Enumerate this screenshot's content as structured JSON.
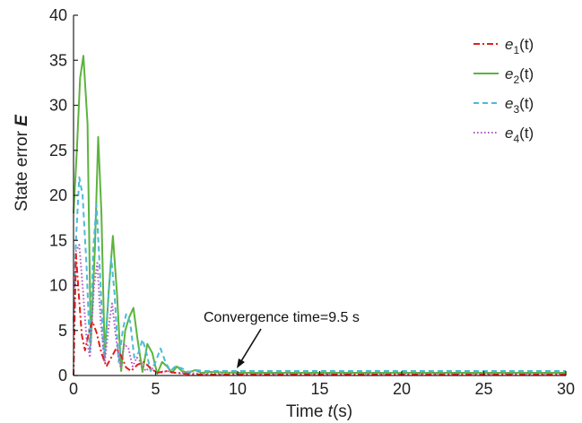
{
  "chart_data": {
    "type": "line",
    "xlabel": "Time t(s)",
    "xlabel_parts": {
      "prefix": "Time ",
      "var": "t",
      "suffix": "(s)"
    },
    "ylabel": "State error E",
    "ylabel_parts": {
      "prefix": "State error ",
      "var": "E"
    },
    "xlim": [
      0,
      30
    ],
    "ylim": [
      0,
      40
    ],
    "xticks": [
      0,
      5,
      10,
      15,
      20,
      25,
      30
    ],
    "yticks": [
      0,
      5,
      10,
      15,
      20,
      25,
      30,
      35,
      40
    ],
    "grid": false,
    "legend_position": "top-right",
    "annotation": {
      "text": "Convergence time=9.5 s",
      "x": 9.5,
      "y": 0.2
    },
    "series": [
      {
        "name": "e1(t)",
        "sym": "e",
        "sub": "1",
        "tail": "(t)",
        "color": "#e0201e",
        "style": "dashdot",
        "x": [
          0,
          0.15,
          0.3,
          0.5,
          0.7,
          0.9,
          1.15,
          1.4,
          1.7,
          2.0,
          2.3,
          2.6,
          2.9,
          3.2,
          3.5,
          3.9,
          4.3,
          4.7,
          5.1,
          5.6,
          6.2,
          7.0,
          8.0,
          9.0,
          10,
          12,
          15,
          20,
          25,
          30
        ],
        "y": [
          0,
          13.5,
          9.5,
          4.5,
          2.8,
          4.5,
          6.0,
          4.8,
          2.5,
          1.0,
          2.0,
          3.0,
          2.2,
          0.9,
          0.5,
          1.2,
          1.5,
          0.8,
          0.3,
          0.5,
          0.3,
          0.15,
          0.1,
          0.1,
          0.1,
          0.1,
          0.1,
          0.1,
          0.1,
          0.1
        ]
      },
      {
        "name": "e2(t)",
        "sym": "e",
        "sub": "2",
        "tail": "(t)",
        "color": "#5db33e",
        "style": "solid",
        "x": [
          0,
          0.2,
          0.4,
          0.6,
          0.85,
          1.05,
          1.3,
          1.5,
          1.7,
          1.9,
          2.15,
          2.4,
          2.65,
          2.9,
          3.15,
          3.4,
          3.65,
          3.9,
          4.2,
          4.5,
          4.8,
          5.1,
          5.4,
          5.7,
          6.0,
          6.3,
          6.6,
          7.0,
          7.4,
          7.8,
          8.3,
          9.0,
          10,
          12,
          15,
          20,
          25,
          30
        ],
        "y": [
          18,
          25,
          33,
          35.5,
          28,
          3.5,
          14,
          26.5,
          18,
          2.0,
          9.5,
          15.5,
          9,
          0.5,
          5,
          6.5,
          7.5,
          4,
          0.4,
          3.5,
          2.5,
          0.2,
          1.5,
          1.0,
          0.3,
          1.0,
          0.5,
          0.3,
          0.6,
          0.3,
          0.4,
          0.35,
          0.3,
          0.3,
          0.3,
          0.3,
          0.3,
          0.3
        ]
      },
      {
        "name": "e3(t)",
        "sym": "e",
        "sub": "3",
        "tail": "(t)",
        "color": "#4bbbd9",
        "style": "dashed",
        "x": [
          0,
          0.15,
          0.35,
          0.55,
          0.8,
          1.0,
          1.2,
          1.4,
          1.65,
          1.85,
          2.1,
          2.3,
          2.5,
          2.75,
          3.0,
          3.2,
          3.45,
          3.7,
          3.95,
          4.2,
          4.45,
          4.7,
          5.0,
          5.3,
          5.6,
          5.9,
          6.2,
          6.6,
          7.0,
          7.5,
          8.0,
          9.0,
          10,
          12,
          15,
          20,
          25,
          30
        ],
        "y": [
          6,
          15,
          22,
          20,
          12,
          2.5,
          14,
          19,
          10,
          1.5,
          8,
          13,
          9,
          1.5,
          5,
          6.8,
          6,
          2.0,
          2.5,
          4.0,
          2.5,
          0.5,
          1.5,
          3.0,
          1.5,
          0.5,
          1.0,
          0.8,
          0.4,
          0.6,
          0.5,
          0.5,
          0.5,
          0.5,
          0.5,
          0.5,
          0.5,
          0.5
        ]
      },
      {
        "name": "e4(t)",
        "sym": "e",
        "sub": "4",
        "tail": "(t)",
        "color": "#b45cc4",
        "style": "dotted",
        "x": [
          0,
          0.15,
          0.35,
          0.55,
          0.8,
          1.0,
          1.25,
          1.45,
          1.65,
          1.9,
          2.15,
          2.35,
          2.6,
          2.85,
          3.1,
          3.35,
          3.6,
          3.85,
          4.1,
          4.4,
          4.7,
          5.0,
          5.3,
          5.7,
          6.2,
          7.0,
          8.0,
          9.0,
          10,
          12,
          15,
          20,
          25,
          30
        ],
        "y": [
          5,
          13.8,
          14.5,
          10,
          4.0,
          2.0,
          10,
          12.5,
          6,
          1.5,
          5.5,
          8,
          4,
          1.0,
          3.5,
          3.0,
          1.0,
          2.0,
          1.5,
          0.5,
          1.0,
          0.4,
          0.3,
          0.5,
          0.3,
          0.25,
          0.2,
          0.2,
          0.2,
          0.2,
          0.2,
          0.2,
          0.2,
          0.2
        ]
      }
    ]
  }
}
